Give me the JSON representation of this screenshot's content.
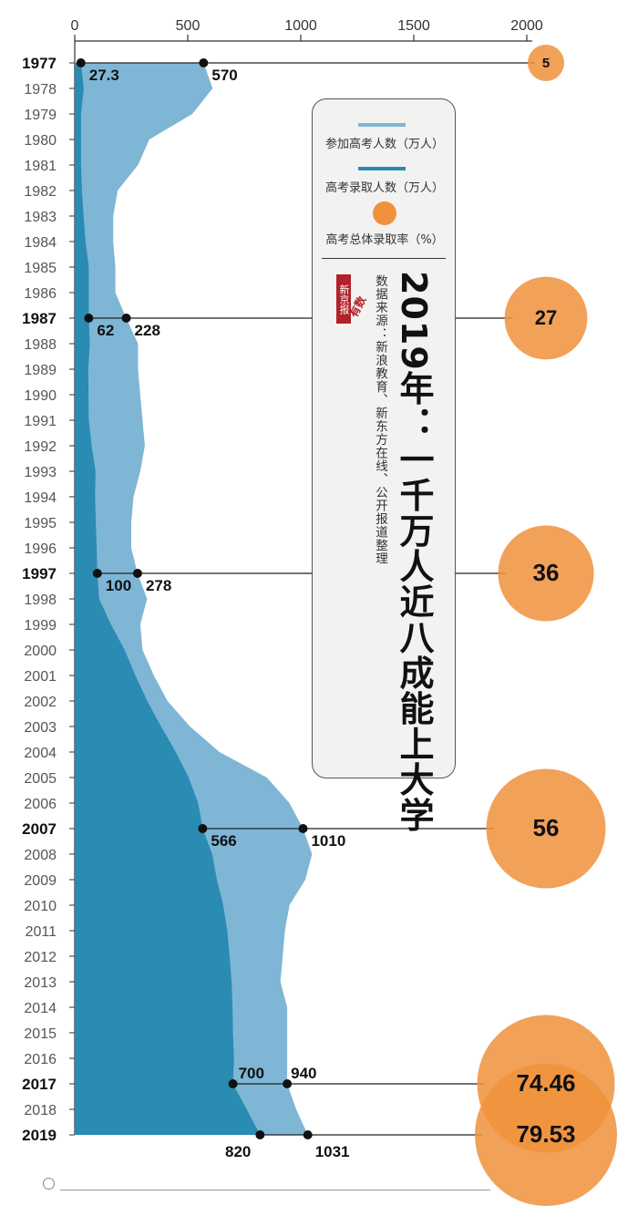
{
  "chart_data": {
    "type": "area",
    "title": "2019年：一千万人近八成能上大学",
    "source": "数据来源：新浪教育、新东方在线、公开报道整理",
    "logo": "新京报",
    "logo_sub": "有数",
    "x_axis": {
      "range": [
        0,
        2000
      ],
      "ticks": [
        "0",
        "500",
        "1000",
        "1500",
        "2000"
      ]
    },
    "years": [
      "1977",
      "1978",
      "1979",
      "1980",
      "1981",
      "1982",
      "1983",
      "1984",
      "1985",
      "1986",
      "1987",
      "1988",
      "1989",
      "1990",
      "1991",
      "1992",
      "1993",
      "1994",
      "1995",
      "1996",
      "1997",
      "1998",
      "1999",
      "2000",
      "2001",
      "2002",
      "2003",
      "2004",
      "2005",
      "2006",
      "2007",
      "2008",
      "2009",
      "2010",
      "2011",
      "2012",
      "2013",
      "2014",
      "2015",
      "2016",
      "2017",
      "2018",
      "2019"
    ],
    "key_years": [
      "1977",
      "1987",
      "1997",
      "2007",
      "2017",
      "2019"
    ],
    "series": [
      {
        "name": "参加高考人数（万人）",
        "color": "#7fb6d6",
        "values": [
          570,
          610,
          520,
          330,
          280,
          190,
          170,
          170,
          180,
          180,
          228,
          280,
          280,
          290,
          300,
          310,
          290,
          260,
          250,
          250,
          278,
          320,
          290,
          300,
          350,
          410,
          510,
          640,
          850,
          950,
          1010,
          1050,
          1020,
          950,
          930,
          920,
          910,
          940,
          940,
          940,
          940,
          980,
          1031
        ]
      },
      {
        "name": "高考录取人数（万人）",
        "color": "#2a8bb3",
        "values": [
          27.3,
          40,
          28,
          28,
          28,
          32,
          39,
          48,
          62,
          62,
          62,
          67,
          60,
          61,
          62,
          75,
          92,
          90,
          93,
          97,
          100,
          108,
          160,
          221,
          268,
          321,
          382,
          447,
          504,
          546,
          566,
          608,
          629,
          657,
          675,
          685,
          694,
          698,
          700,
          705,
          700,
          761,
          820
        ]
      }
    ],
    "point_labels": [
      {
        "year": "1977",
        "enrolled": "27.3",
        "applicants": "570"
      },
      {
        "year": "1987",
        "enrolled": "62",
        "applicants": "228"
      },
      {
        "year": "1997",
        "enrolled": "100",
        "applicants": "278"
      },
      {
        "year": "2007",
        "enrolled": "566",
        "applicants": "1010"
      },
      {
        "year": "2017",
        "enrolled": "700",
        "applicants": "940"
      },
      {
        "year": "2019",
        "enrolled": "820",
        "applicants": "1031"
      }
    ],
    "rate_series": {
      "name": "高考总体录取率（%）",
      "color": "#f0923d",
      "points": [
        {
          "year": "1977",
          "value": 5,
          "label": "5"
        },
        {
          "year": "1987",
          "value": 27,
          "label": "27"
        },
        {
          "year": "1997",
          "value": 36,
          "label": "36"
        },
        {
          "year": "2007",
          "value": 56,
          "label": "56"
        },
        {
          "year": "2017",
          "value": 74.46,
          "label": "74.46"
        },
        {
          "year": "2019",
          "value": 79.53,
          "label": "79.53"
        }
      ]
    }
  }
}
